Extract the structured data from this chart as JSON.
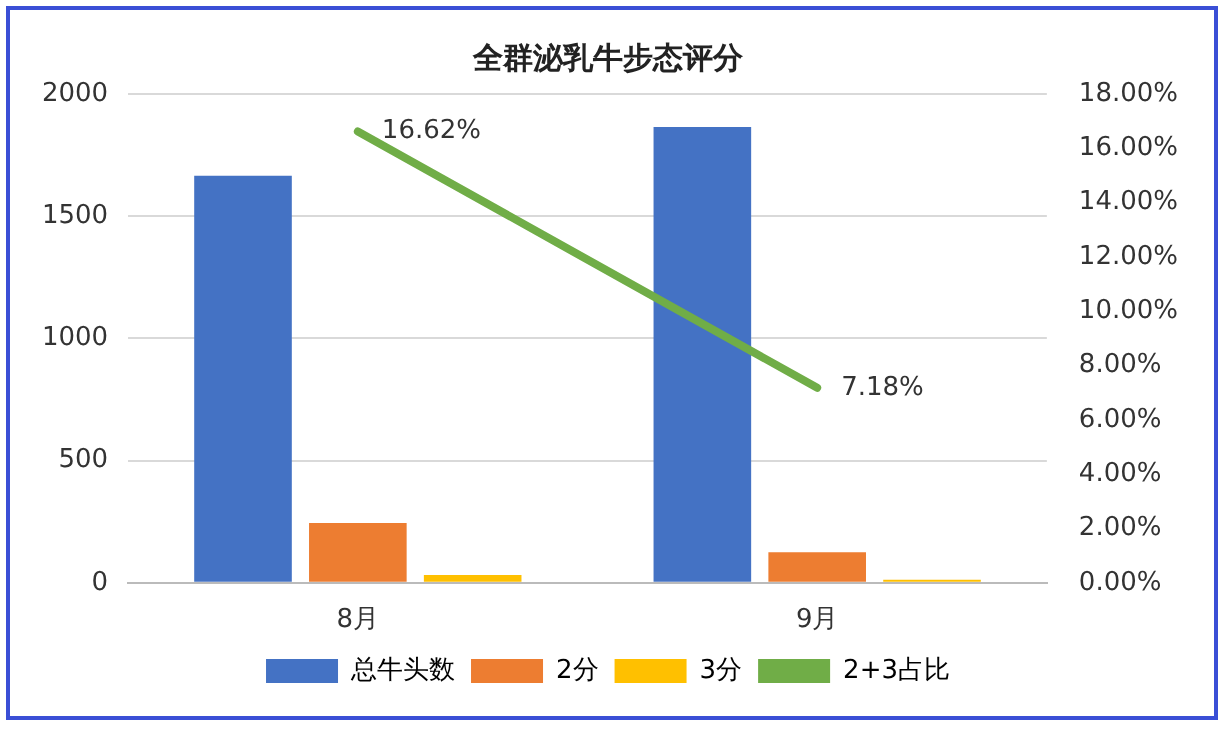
{
  "chart_data": {
    "type": "bar",
    "title": "全群泌乳牛步态评分",
    "categories": [
      "8月",
      "9月"
    ],
    "series": [
      {
        "name": "总牛头数",
        "color": "#4472c4",
        "values": [
          1665,
          1865
        ]
      },
      {
        "name": "2分",
        "color": "#ed7d31",
        "values": [
          245,
          125
        ]
      },
      {
        "name": "3分",
        "color": "#ffc000",
        "values": [
          32,
          12
        ]
      },
      {
        "name": "2+3占比",
        "type": "line",
        "axis": "y2",
        "color": "#70ad47",
        "values": [
          16.62,
          7.18
        ],
        "value_labels": [
          "16.62%",
          "7.18%"
        ],
        "marker": "none"
      }
    ],
    "ylim": [
      0,
      2000
    ],
    "yticks": [
      0,
      500,
      1000,
      1500,
      2000
    ],
    "y2lim": [
      0,
      18
    ],
    "y2ticks": [
      {
        "value": 0,
        "label": "0.00%"
      },
      {
        "value": 2,
        "label": "2.00%"
      },
      {
        "value": 4,
        "label": "4.00%"
      },
      {
        "value": 6,
        "label": "6.00%"
      },
      {
        "value": 8,
        "label": "8.00%"
      },
      {
        "value": 10,
        "label": "10.00%"
      },
      {
        "value": 12,
        "label": "12.00%"
      },
      {
        "value": 14,
        "label": "14.00%"
      },
      {
        "value": 16,
        "label": "16.00%"
      },
      {
        "value": 18,
        "label": "18.00%"
      }
    ],
    "grid": "y",
    "legend": "bottom"
  }
}
